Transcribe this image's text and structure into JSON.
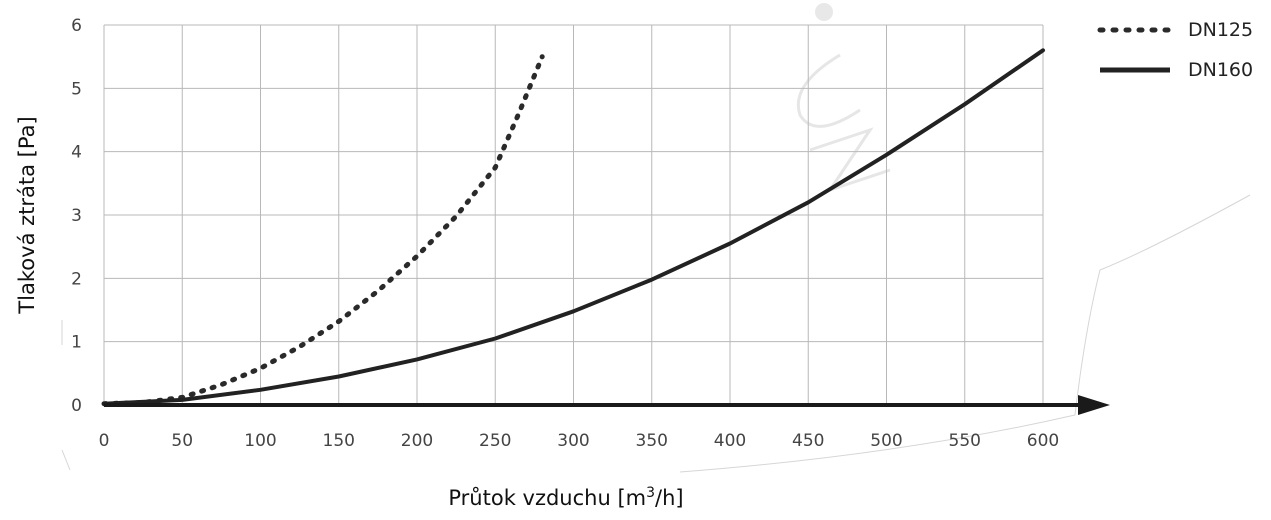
{
  "chart_data": {
    "type": "line",
    "title": "",
    "xlabel": "Průtok vzduchu [m",
    "xlabel_sup": "3",
    "xlabel_end": "/h]",
    "ylabel": "Tlaková ztráta [Pa]",
    "xlim": [
      0,
      600
    ],
    "ylim": [
      0,
      6
    ],
    "xticks": [
      "0",
      "50",
      "100",
      "150",
      "200",
      "250",
      "300",
      "350",
      "400",
      "450",
      "500",
      "550",
      "600"
    ],
    "yticks": [
      "0",
      "1",
      "2",
      "3",
      "4",
      "5",
      "6"
    ],
    "grid": true,
    "legend_position": "top-right",
    "series": [
      {
        "name": "DN125",
        "style": "dotted",
        "color": "#2a2a2a",
        "x": [
          0,
          25,
          50,
          75,
          100,
          125,
          150,
          175,
          200,
          225,
          250,
          265,
          280
        ],
        "y": [
          0.02,
          0.04,
          0.12,
          0.32,
          0.58,
          0.92,
          1.32,
          1.8,
          2.35,
          2.98,
          3.75,
          4.6,
          5.5
        ]
      },
      {
        "name": "DN160",
        "style": "solid",
        "color": "#222222",
        "x": [
          0,
          50,
          100,
          150,
          200,
          250,
          300,
          350,
          400,
          450,
          500,
          550,
          600
        ],
        "y": [
          0.02,
          0.08,
          0.24,
          0.45,
          0.72,
          1.05,
          1.48,
          1.98,
          2.55,
          3.2,
          3.95,
          4.75,
          5.6
        ]
      }
    ]
  }
}
